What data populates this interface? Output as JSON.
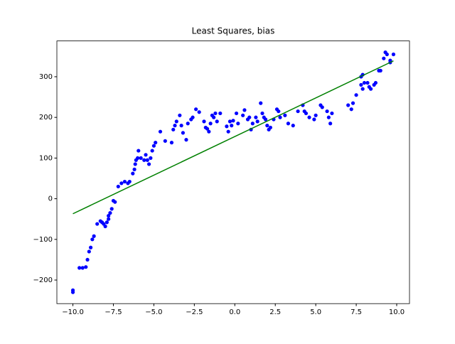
{
  "chart_data": {
    "type": "scatter",
    "title": "Least Squares, bias",
    "xlim": [
      -10.99,
      10.79
    ],
    "ylim": [
      -258,
      388
    ],
    "xticks": [
      {
        "value": -10,
        "label": "−10.0"
      },
      {
        "value": -7.5,
        "label": "−7.5"
      },
      {
        "value": -5,
        "label": "−5.0"
      },
      {
        "value": -2.5,
        "label": "−2.5"
      },
      {
        "value": 0,
        "label": "0.0"
      },
      {
        "value": 2.5,
        "label": "2.5"
      },
      {
        "value": 5,
        "label": "5.0"
      },
      {
        "value": 7.5,
        "label": "7.5"
      },
      {
        "value": 10,
        "label": "10.0"
      }
    ],
    "yticks": [
      {
        "value": -200,
        "label": "−200"
      },
      {
        "value": -100,
        "label": "−100"
      },
      0,
      100,
      200,
      300
    ],
    "scatter": {
      "color": "#0000ff",
      "x": [
        -10,
        -10,
        -9.6,
        -9.4,
        -9.2,
        -9.1,
        -9.0,
        -8.9,
        -8.8,
        -8.7,
        -8.5,
        -8.3,
        -8.2,
        -8.1,
        -8.0,
        -7.9,
        -7.8,
        -7.8,
        -7.7,
        -7.6,
        -7.5,
        -7.4,
        -7.2,
        -7.0,
        -6.8,
        -6.6,
        -6.5,
        -6.3,
        -6.2,
        -6.15,
        -6.1,
        -6.0,
        -5.95,
        -5.8,
        -5.6,
        -5.5,
        -5.4,
        -5.3,
        -5.2,
        -5.1,
        -5.0,
        -4.9,
        -4.6,
        -4.3,
        -3.9,
        -3.8,
        -3.7,
        -3.6,
        -3.4,
        -3.3,
        -3.2,
        -3.0,
        -2.9,
        -2.7,
        -2.6,
        -2.4,
        -2.2,
        -1.9,
        -1.8,
        -1.7,
        -1.6,
        -1.5,
        -1.4,
        -1.3,
        -1.2,
        -1.1,
        -0.9,
        -0.5,
        -0.4,
        -0.3,
        -0.2,
        -0.1,
        0.1,
        0.2,
        0.5,
        0.6,
        0.8,
        0.9,
        1.0,
        1.1,
        1.3,
        1.4,
        1.6,
        1.7,
        1.8,
        1.9,
        2.0,
        2.1,
        2.2,
        2.4,
        2.6,
        2.7,
        2.8,
        3.1,
        3.3,
        3.6,
        3.9,
        4.2,
        4.3,
        4.4,
        4.6,
        4.9,
        5.0,
        5.3,
        5.4,
        5.7,
        5.8,
        5.9,
        6.0,
        7.0,
        7.2,
        7.3,
        7.5,
        7.8,
        7.8,
        7.9,
        7.9,
        8.0,
        8.2,
        8.3,
        8.4,
        8.6,
        8.7,
        8.9,
        9.0,
        9.2,
        9.3,
        9.4,
        9.6,
        9.6,
        9.8
      ],
      "y": [
        -225,
        -230,
        -170,
        -170,
        -168,
        -150,
        -130,
        -120,
        -100,
        -92,
        -62,
        -55,
        -58,
        -62,
        -68,
        -58,
        -50,
        -42,
        -35,
        -25,
        -5,
        -8,
        30,
        38,
        42,
        38,
        42,
        62,
        72,
        85,
        95,
        100,
        118,
        100,
        95,
        108,
        95,
        85,
        100,
        118,
        130,
        138,
        165,
        142,
        138,
        170,
        180,
        190,
        205,
        180,
        162,
        145,
        185,
        195,
        200,
        220,
        213,
        190,
        175,
        172,
        165,
        185,
        205,
        200,
        210,
        190,
        210,
        178,
        165,
        190,
        180,
        192,
        210,
        185,
        205,
        218,
        195,
        200,
        170,
        185,
        200,
        190,
        235,
        210,
        200,
        195,
        180,
        170,
        175,
        195,
        220,
        215,
        200,
        205,
        185,
        180,
        215,
        230,
        215,
        210,
        200,
        195,
        205,
        230,
        225,
        215,
        200,
        185,
        210,
        230,
        220,
        235,
        255,
        280,
        300,
        305,
        270,
        285,
        285,
        275,
        270,
        280,
        285,
        315,
        315,
        345,
        360,
        355,
        340,
        335,
        355
      ]
    },
    "fit_line": {
      "color": "#008000",
      "x": [
        -10,
        9.8
      ],
      "y": [
        -37,
        339
      ]
    }
  }
}
